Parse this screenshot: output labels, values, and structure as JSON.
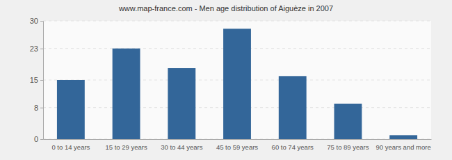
{
  "chart_data": {
    "type": "bar",
    "title": "www.map-france.com - Men age distribution of Aiguèze in 2007",
    "categories": [
      "0 to 14 years",
      "15 to 29 years",
      "30 to 44 years",
      "45 to 59 years",
      "60 to 74 years",
      "75 to 89 years",
      "90 years and more"
    ],
    "values": [
      15,
      23,
      18,
      28,
      16,
      9,
      1
    ],
    "color": "#336699",
    "ylim": [
      0,
      30
    ],
    "yticks": [
      0,
      8,
      15,
      23,
      30
    ],
    "grid": true
  }
}
